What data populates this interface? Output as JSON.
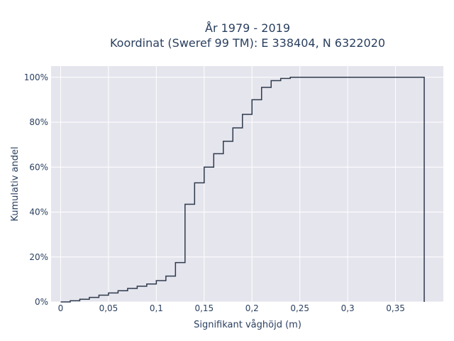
{
  "chart_data": {
    "type": "line",
    "line_shape": "step",
    "title_line1": "År 1979 - 2019",
    "title_line2": "Koordinat (Sweref 99 TM): E 338404, N 6322020",
    "xlabel": "Signifikant våghöjd (m)",
    "ylabel": "Kumulativ andel",
    "xlim": [
      -0.01,
      0.4
    ],
    "ylim": [
      0,
      1.05
    ],
    "x_ticks": [
      0,
      0.05,
      0.1,
      0.15,
      0.2,
      0.25,
      0.3,
      0.35
    ],
    "x_tick_labels": [
      "0",
      "0,05",
      "0,1",
      "0,15",
      "0,2",
      "0,25",
      "0,3",
      "0,35"
    ],
    "y_ticks": [
      0,
      0.2,
      0.4,
      0.6,
      0.8,
      1.0
    ],
    "y_tick_labels": [
      "0%",
      "20%",
      "40%",
      "60%",
      "80%",
      "100%"
    ],
    "grid": true,
    "colors": {
      "plot_bg": "#e5e5ee",
      "grid": "#ffffff",
      "line": "#2f3a4b",
      "text": "#2a3f5f"
    },
    "x": [
      0,
      0.01,
      0.02,
      0.03,
      0.04,
      0.05,
      0.06,
      0.07,
      0.08,
      0.09,
      0.1,
      0.11,
      0.12,
      0.13,
      0.14,
      0.15,
      0.16,
      0.17,
      0.18,
      0.19,
      0.2,
      0.21,
      0.22,
      0.23,
      0.24,
      0.25,
      0.38,
      0.38
    ],
    "y": [
      0.0,
      0.005,
      0.012,
      0.02,
      0.03,
      0.04,
      0.05,
      0.06,
      0.07,
      0.08,
      0.095,
      0.115,
      0.175,
      0.435,
      0.53,
      0.6,
      0.66,
      0.715,
      0.775,
      0.835,
      0.9,
      0.955,
      0.985,
      0.995,
      1.0,
      1.0,
      1.0,
      0.0
    ]
  }
}
